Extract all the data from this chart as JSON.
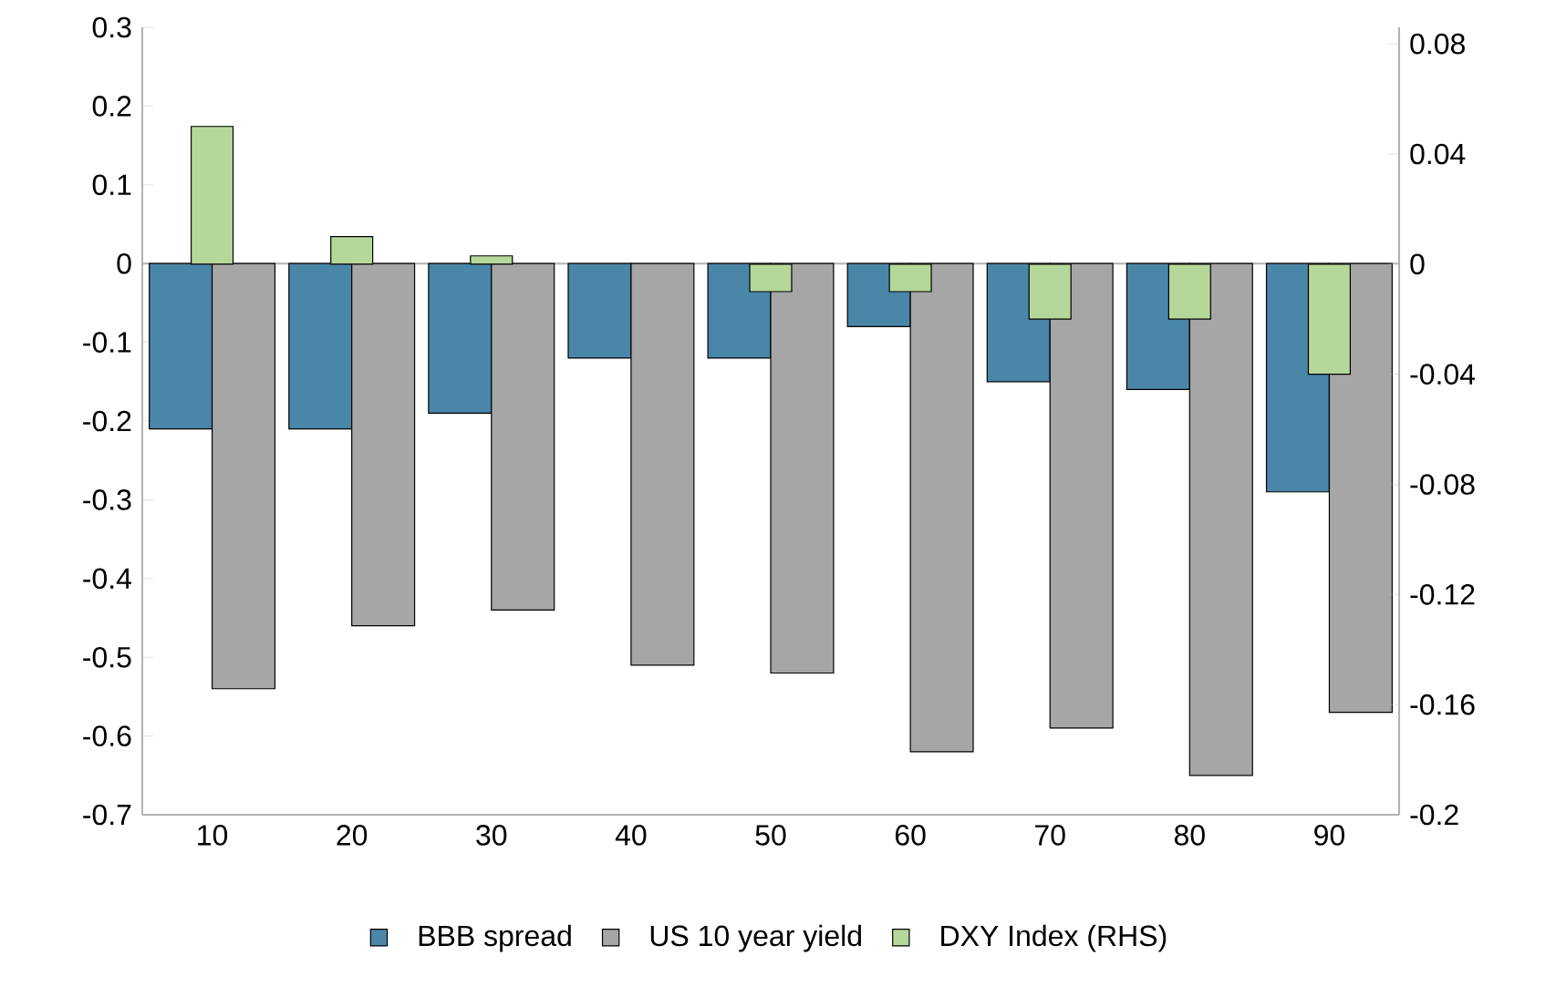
{
  "chart_data": {
    "type": "bar",
    "categories": [
      "10",
      "20",
      "30",
      "40",
      "50",
      "60",
      "70",
      "80",
      "90"
    ],
    "series": [
      {
        "name": "BBB spread",
        "color": "#4a86a8",
        "values": [
          -0.21,
          -0.21,
          -0.19,
          -0.12,
          -0.12,
          -0.08,
          -0.15,
          -0.16,
          -0.29
        ]
      },
      {
        "name": "US 10 year yield",
        "color": "#a6a6a6",
        "values": [
          -0.54,
          -0.46,
          -0.44,
          -0.51,
          -0.52,
          -0.62,
          -0.59,
          -0.65,
          -0.57
        ]
      },
      {
        "name": "DXY Index (RHS)",
        "color": "#b5d89a",
        "axis": "y2",
        "values": [
          0.05,
          0.01,
          0.003,
          null,
          -0.01,
          -0.01,
          -0.02,
          -0.02,
          -0.04
        ]
      }
    ],
    "ylim": [
      -0.7,
      0.3
    ],
    "yticks": [
      -0.7,
      -0.6,
      -0.5,
      -0.4,
      -0.3,
      -0.2,
      -0.1,
      0,
      0.1,
      0.2,
      0.3
    ],
    "y2lim": [
      -0.2,
      0.086
    ],
    "y2ticks": [
      -0.2,
      -0.16,
      -0.12,
      -0.08,
      -0.04,
      0,
      0.04,
      0.08
    ],
    "ref_lines": [
      {
        "axis": "y",
        "value": 0
      }
    ],
    "legend": "bottom"
  }
}
